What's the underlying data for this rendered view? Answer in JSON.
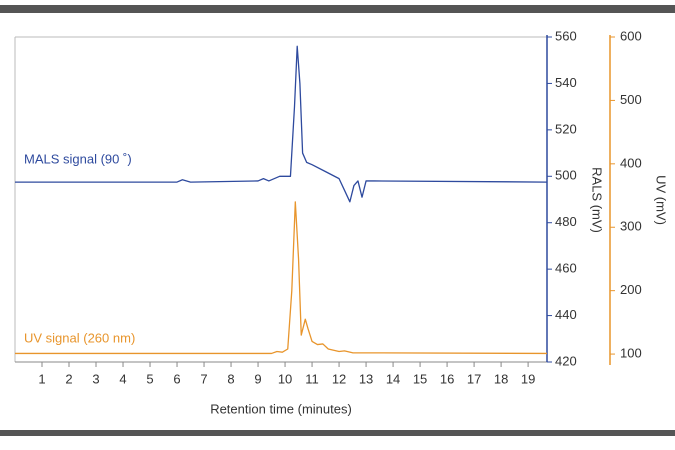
{
  "chart_data": {
    "type": "line",
    "xlabel": "Retention time (minutes)",
    "ylabel": "RALS (mV)",
    "y2label": "UV (mV)",
    "xlim": [
      0,
      19.7
    ],
    "xticks": [
      1,
      2,
      3,
      4,
      5,
      6,
      7,
      8,
      9,
      10,
      11,
      12,
      13,
      14,
      15,
      16,
      17,
      18,
      19
    ],
    "ylim": [
      420,
      560
    ],
    "yticks": [
      420,
      440,
      460,
      480,
      500,
      520,
      540,
      560
    ],
    "y2lim": [
      87.5,
      600
    ],
    "y2ticks": [
      100,
      200,
      300,
      400,
      500,
      600
    ],
    "series": [
      {
        "name": "MALS signal (90 ˚)",
        "color": "#2e4a9e",
        "x": [
          0,
          6.0,
          6.2,
          6.5,
          9.0,
          9.2,
          9.4,
          9.8,
          10.2,
          10.35,
          10.45,
          10.55,
          10.65,
          10.8,
          11.0,
          11.5,
          12.0,
          12.2,
          12.4,
          12.55,
          12.7,
          12.85,
          13.0,
          13.3,
          19.7
        ],
        "values": [
          497.5,
          497.5,
          498.5,
          497.5,
          498,
          499,
          498,
          500,
          500,
          530,
          556,
          540,
          510,
          506,
          505,
          502,
          499,
          494,
          489,
          496,
          498,
          491,
          498,
          498,
          497.5
        ]
      },
      {
        "name": "UV signal (260 nm)",
        "color": "#e8952c",
        "axis": "y2",
        "x": [
          0,
          9.5,
          9.7,
          9.9,
          10.1,
          10.25,
          10.38,
          10.5,
          10.6,
          10.75,
          10.85,
          11.0,
          11.2,
          11.4,
          11.6,
          12.0,
          12.2,
          12.5,
          19.7
        ],
        "values": [
          101,
          101,
          104,
          103,
          108,
          200,
          340,
          250,
          130,
          155,
          140,
          120,
          115,
          116,
          108,
          104,
          105,
          102,
          101
        ]
      }
    ]
  }
}
